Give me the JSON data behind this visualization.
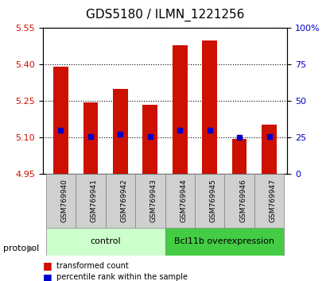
{
  "title": "GDS5180 / ILMN_1221256",
  "samples": [
    "GSM769940",
    "GSM769941",
    "GSM769942",
    "GSM769943",
    "GSM769944",
    "GSM769945",
    "GSM769946",
    "GSM769947"
  ],
  "bar_tops": [
    5.39,
    5.245,
    5.3,
    5.235,
    5.48,
    5.5,
    5.095,
    5.155
  ],
  "bar_bottom": 4.95,
  "percentile_values": [
    5.13,
    5.105,
    5.115,
    5.105,
    5.13,
    5.13,
    5.102,
    5.105
  ],
  "ylim": [
    4.95,
    5.55
  ],
  "y2lim": [
    0,
    100
  ],
  "yticks": [
    4.95,
    5.1,
    5.25,
    5.4,
    5.55
  ],
  "y2ticks": [
    0,
    25,
    50,
    75,
    100
  ],
  "y2ticklabels": [
    "0",
    "25",
    "50",
    "75",
    "100%"
  ],
  "bar_color": "#cc1100",
  "percentile_color": "#0000cc",
  "group1_label": "control",
  "group2_label": "Bcl11b overexpression",
  "group1_color": "#ccffcc",
  "group2_color": "#44cc44",
  "group1_indices": [
    0,
    1,
    2,
    3
  ],
  "group2_indices": [
    4,
    5,
    6,
    7
  ],
  "legend_labels": [
    "transformed count",
    "percentile rank within the sample"
  ],
  "plot_bg": "#ffffff",
  "tick_label_area_color": "#d0d0d0"
}
